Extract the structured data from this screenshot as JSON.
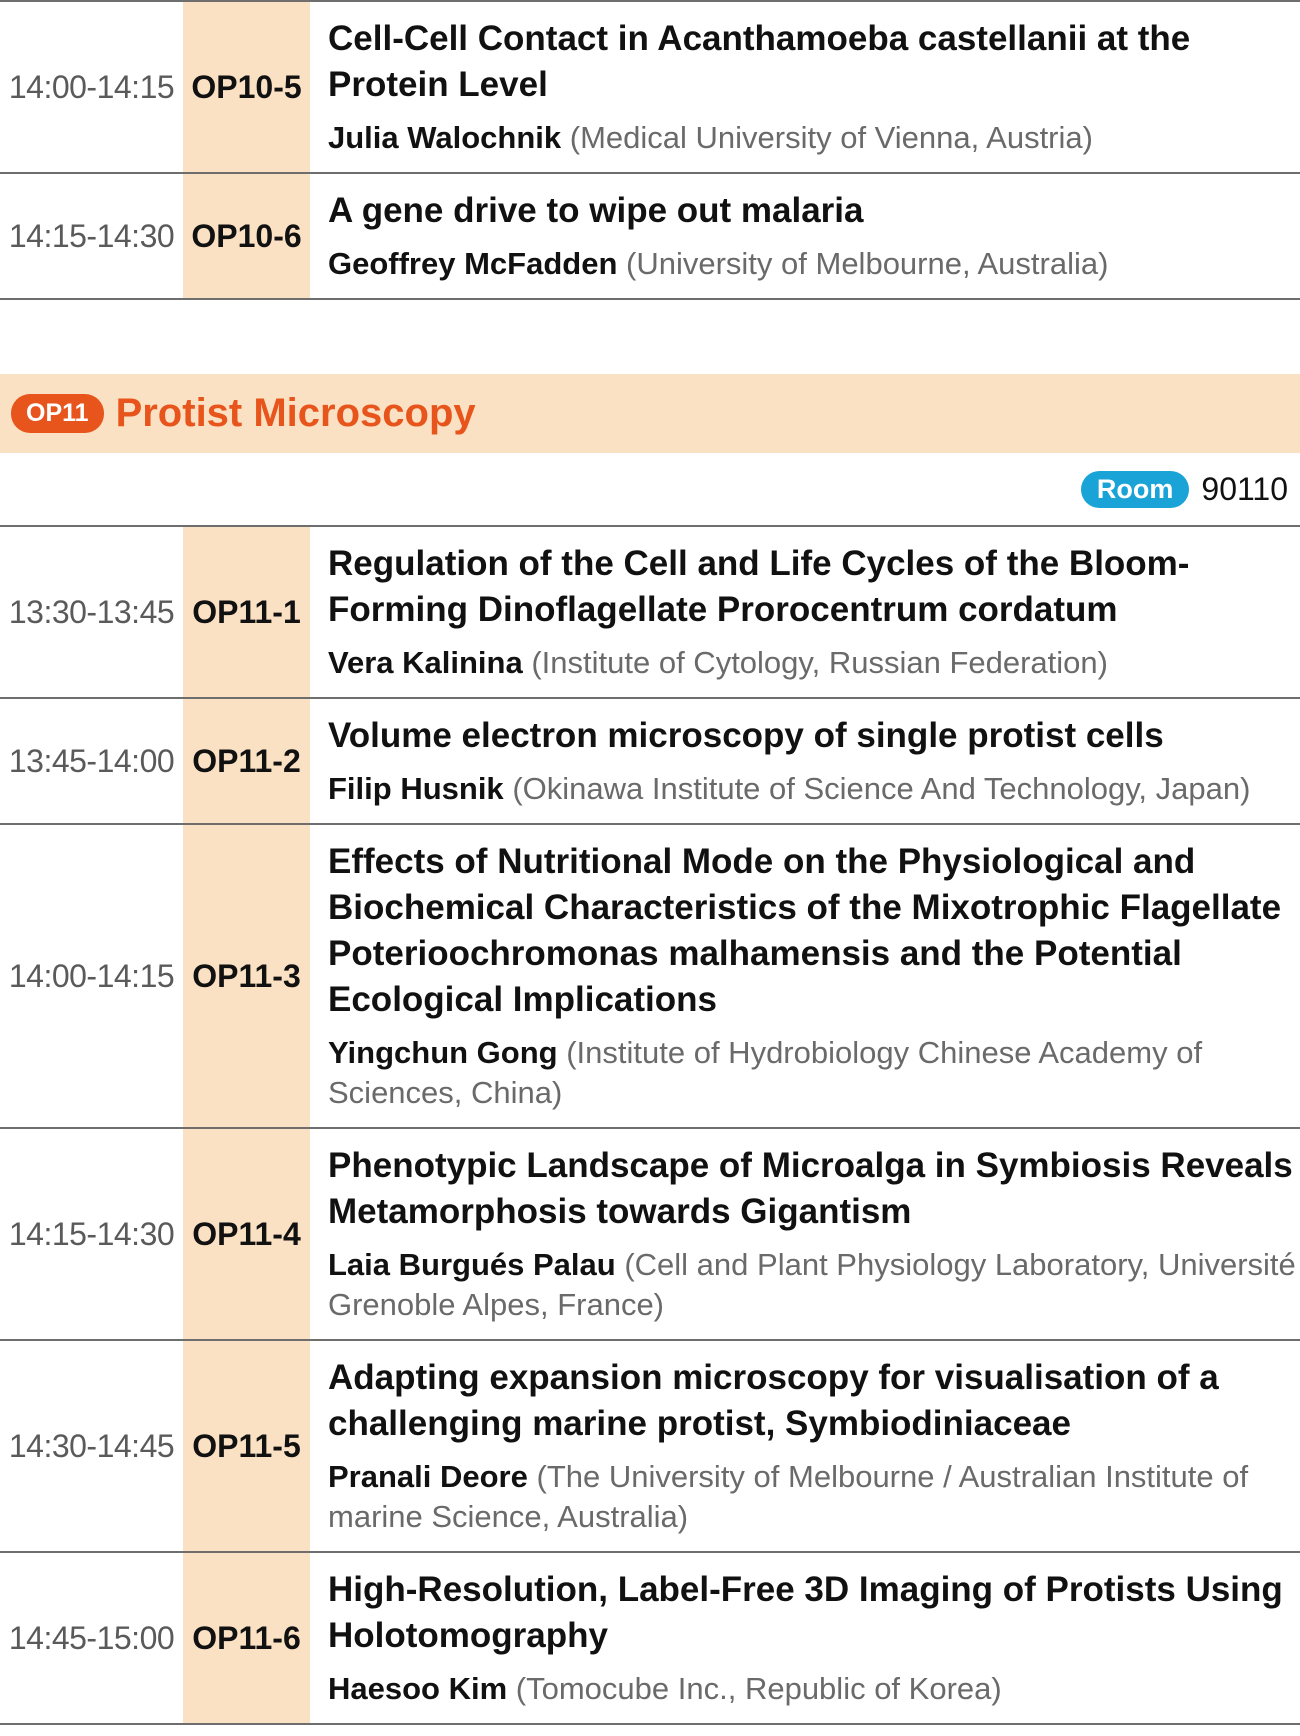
{
  "op10_rows": [
    {
      "time": "14:00-14:15",
      "code": "OP10-5",
      "title": "Cell-Cell Contact in Acanthamoeba castellanii at the Protein Level",
      "speaker": "Julia Walochnik",
      "affiliation": "(Medical University of Vienna, Austria)"
    },
    {
      "time": "14:15-14:30",
      "code": "OP10-6",
      "title": "A gene drive to wipe out malaria",
      "speaker": "Geoffrey McFadden",
      "affiliation": "(University of Melbourne, Australia)"
    }
  ],
  "section": {
    "badge": "OP11",
    "title": "Protist Microscopy",
    "room_label": "Room",
    "room_number": "90110"
  },
  "op11_rows": [
    {
      "time": "13:30-13:45",
      "code": "OP11-1",
      "title": "Regulation of the Cell and Life Cycles of the Bloom-Forming Dinoflagellate Prorocentrum cordatum",
      "speaker": "Vera Kalinina",
      "affiliation": "(Institute of Cytology, Russian Federation)"
    },
    {
      "time": "13:45-14:00",
      "code": "OP11-2",
      "title": "Volume electron microscopy of single protist cells",
      "speaker": "Filip Husnik",
      "affiliation": "(Okinawa Institute of Science And Technology, Japan)"
    },
    {
      "time": "14:00-14:15",
      "code": "OP11-3",
      "title": "Effects of Nutritional Mode on the Physiological and Biochemical Characteristics of the Mixotrophic Flagellate Poterioochromonas malhamensis and the Potential Ecological Implications",
      "speaker": "Yingchun Gong",
      "affiliation": "(Institute of Hydrobiology Chinese Academy of Sciences, China)"
    },
    {
      "time": "14:15-14:30",
      "code": "OP11-4",
      "title": "Phenotypic Landscape of Microalga in Symbiosis Reveals Metamorphosis towards Gigantism",
      "speaker": "Laia Burgués Palau",
      "affiliation": "(Cell and Plant Physiology Laboratory, Université Grenoble Alpes, France)"
    },
    {
      "time": "14:30-14:45",
      "code": "OP11-5",
      "title": "Adapting expansion microscopy for visualisation of a challenging marine protist, Symbiodiniaceae",
      "speaker": "Pranali Deore",
      "affiliation": "(The University of Melbourne / Australian Institute of marine Science, Australia)"
    },
    {
      "time": "14:45-15:00",
      "code": "OP11-6",
      "title": "High-Resolution, Label-Free 3D Imaging of Protists Using Holotomography",
      "speaker": "Haesoo Kim",
      "affiliation": "(Tomocube Inc., Republic of Korea)"
    }
  ]
}
